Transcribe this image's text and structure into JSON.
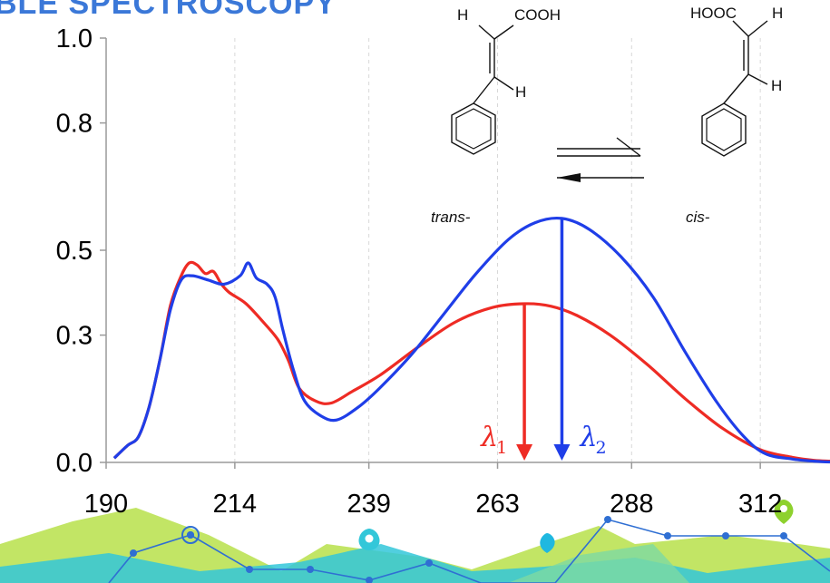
{
  "header": {
    "title": "BLE SPECTROSCOPY"
  },
  "chart_data": {
    "type": "line",
    "xlim": [
      190,
      325
    ],
    "ylim": [
      0,
      1.0
    ],
    "x_ticks": [
      190,
      214,
      239,
      263,
      288,
      312
    ],
    "y_ticks": [
      0.0,
      0.3,
      0.5,
      0.8,
      1.0
    ],
    "x_tick_labels": [
      "190",
      "214",
      "239",
      "263",
      "288",
      "312"
    ],
    "y_tick_labels": [
      "0.0",
      "0.3",
      "0.5",
      "0.8",
      "1.0"
    ],
    "grid": {
      "x": true,
      "y": false
    },
    "series": [
      {
        "color": "#ee2b24",
        "x": [
          191.5,
          194,
          196,
          198,
          200,
          202,
          204,
          205.5,
          207,
          208.5,
          210,
          211.5,
          213,
          216,
          219,
          222,
          224,
          226,
          229,
          232,
          236,
          241,
          248,
          255,
          262,
          268,
          273,
          278,
          284,
          291,
          298,
          305,
          312,
          318,
          322,
          325
        ],
        "y": [
          0.01,
          0.04,
          0.06,
          0.13,
          0.24,
          0.37,
          0.44,
          0.47,
          0.465,
          0.445,
          0.45,
          0.42,
          0.4,
          0.375,
          0.335,
          0.29,
          0.24,
          0.175,
          0.145,
          0.14,
          0.168,
          0.205,
          0.27,
          0.33,
          0.365,
          0.374,
          0.368,
          0.345,
          0.3,
          0.23,
          0.15,
          0.08,
          0.03,
          0.012,
          0.005,
          0.003
        ]
      },
      {
        "color": "#1f3ee8",
        "x": [
          191.5,
          194,
          196,
          198,
          200,
          202,
          204,
          206,
          209,
          212,
          215,
          216.5,
          218,
          220,
          221.5,
          223,
          225,
          227,
          230,
          233,
          237,
          241,
          247,
          253,
          259,
          265,
          270,
          275,
          280,
          286,
          292,
          298,
          304,
          309,
          313,
          318,
          322,
          325
        ],
        "y": [
          0.01,
          0.04,
          0.06,
          0.13,
          0.24,
          0.36,
          0.43,
          0.44,
          0.43,
          0.42,
          0.44,
          0.47,
          0.435,
          0.42,
          0.39,
          0.31,
          0.215,
          0.145,
          0.11,
          0.1,
          0.13,
          0.175,
          0.255,
          0.35,
          0.445,
          0.525,
          0.565,
          0.575,
          0.55,
          0.485,
          0.39,
          0.26,
          0.14,
          0.06,
          0.02,
          0.008,
          0.003,
          0.001
        ]
      }
    ],
    "annotations": [
      {
        "symbol": "λ",
        "subscript": "1",
        "x": 268,
        "y_top": 0.374,
        "color": "#ee2b24"
      },
      {
        "symbol": "λ",
        "subscript": "2",
        "x": 275,
        "y_top": 0.575,
        "color": "#1f3ee8"
      }
    ],
    "inset": {
      "trans_substituents": {
        "top_left": "H",
        "top_right": "COOH",
        "right": "H"
      },
      "cis_substituents": {
        "top_left": "HOOC",
        "top_right": "H",
        "right": "H"
      },
      "labels": {
        "trans": "trans-",
        "cis": "cis-"
      }
    }
  },
  "decor": {
    "markers": [
      "target-icon",
      "location-pin-icon",
      "drop-icon",
      "location-pin-icon"
    ],
    "colors": {
      "lime": "#b7e04a",
      "teal": "#33c7d9",
      "blue": "#2f6fd3",
      "pin_lime": "#8ed12e"
    }
  }
}
